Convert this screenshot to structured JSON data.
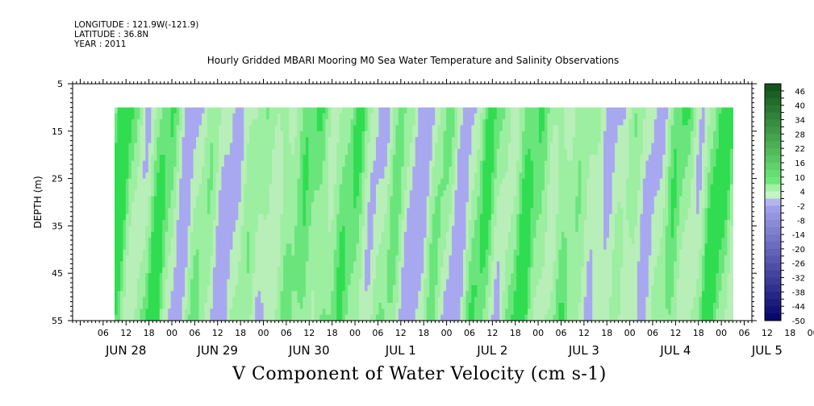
{
  "header": {
    "longitude": "LONGITUDE : 121.9W(-121.9)",
    "latitude": "LATITUDE : 36.8N",
    "year": "YEAR : 2011"
  },
  "chart_data": {
    "type": "heatmap",
    "title": "Hourly Gridded MBARI Mooring M0 Sea Water Temperature and Salinity Observations",
    "xlabel": "V Component of Water Velocity (cm s-1)",
    "ylabel": "DEPTH (m)",
    "ylim": [
      55,
      5
    ],
    "y_ticks": [
      5,
      15,
      25,
      35,
      45,
      55
    ],
    "data_depth_range": [
      10,
      55
    ],
    "x_range_hours": [
      "JUN 27 22:00",
      "JUL 5 06:00"
    ],
    "data_time_range": [
      "JUN 28 09:00",
      "JUL 5 03:00"
    ],
    "x_hour_ticks": [
      "06",
      "12",
      "18",
      "00",
      "06",
      "12",
      "18",
      "00",
      "06",
      "12",
      "18",
      "00",
      "06",
      "12",
      "18",
      "00",
      "06",
      "12",
      "18",
      "00",
      "06",
      "12",
      "18",
      "00",
      "06",
      "12",
      "18",
      "00",
      "06",
      "12",
      "18",
      "00"
    ],
    "x_day_labels": [
      "JUN 28",
      "JUN 29",
      "JUN 30",
      "JUL  1",
      "JUL  2",
      "JUL  3",
      "JUL  4",
      "JUL  5"
    ],
    "colorbar": {
      "labels": [
        "46",
        "40",
        "34",
        "28",
        "22",
        "16",
        "10",
        "4",
        "-2",
        "-8",
        "-14",
        "-20",
        "-26",
        "-32",
        "-38",
        "-44",
        "-50"
      ],
      "min": -50,
      "max": 49,
      "step": 3
    },
    "colors": {
      "pale_green": "#a4f0a4",
      "mid_green": "#66e57a",
      "bright_green": "#22dc44",
      "lavender": "#a8a8f0"
    }
  }
}
